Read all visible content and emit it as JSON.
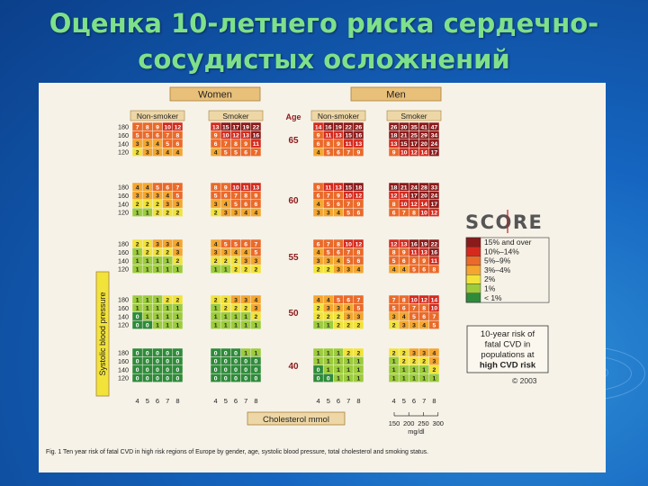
{
  "title_lines": [
    "Оценка 10-летнего риска сердечно-",
    "сосудистых осложнений"
  ],
  "colors": {
    "title": "#7ee08a",
    "risk_15_plus": "#8b1a1a",
    "risk_10_14": "#d42a1e",
    "risk_5_9": "#ea6a2a",
    "risk_3_4": "#f4a62f",
    "risk_2": "#f2e33a",
    "risk_1": "#9ccc3c",
    "risk_lt1": "#2e8b3a"
  },
  "chart_data": {
    "type": "heatmap",
    "gender_headers": [
      "Women",
      "Men"
    ],
    "smoking_headers": [
      "Non-smoker",
      "Smoker",
      "Non-smoker",
      "Smoker"
    ],
    "age_header": "Age",
    "ages": [
      "65",
      "60",
      "55",
      "50",
      "40"
    ],
    "sbp_rows": [
      "180",
      "160",
      "140",
      "120"
    ],
    "cholesterol_ticks": [
      "4",
      "5",
      "6",
      "7",
      "8"
    ],
    "x_axis_label": "Cholesterol mmol",
    "y_axis_label": "Systolic blood pressure",
    "mgdl_ticks": [
      "150",
      "200",
      "250",
      "300"
    ],
    "mgdl_unit": "mg/dl",
    "brand": "SCORE",
    "legend": [
      "15% and over",
      "10%–14%",
      "5%–9%",
      "3%–4%",
      "2%",
      "1%",
      "< 1%"
    ],
    "legend_caption": [
      "10-year risk of",
      "fatal CVD in",
      "populations at",
      "high CVD risk"
    ],
    "copyright": "© 2003",
    "caption": "Fig. 1   Ten year risk of fatal CVD in high risk regions of Europe by gender, age, systolic blood pressure, total cholesterol and smoking status.",
    "panels": [
      [
        [
          [
            7,
            8,
            9,
            10,
            12
          ],
          [
            5,
            5,
            6,
            7,
            8
          ],
          [
            3,
            3,
            4,
            5,
            6
          ],
          [
            2,
            3,
            3,
            4,
            4
          ]
        ],
        [
          [
            13,
            15,
            17,
            19,
            22
          ],
          [
            9,
            10,
            12,
            13,
            16
          ],
          [
            6,
            7,
            8,
            9,
            11
          ],
          [
            4,
            5,
            5,
            6,
            7
          ]
        ],
        [
          [
            14,
            16,
            19,
            22,
            26
          ],
          [
            9,
            11,
            13,
            15,
            16
          ],
          [
            6,
            8,
            9,
            11,
            13
          ],
          [
            4,
            5,
            6,
            7,
            9
          ]
        ],
        [
          [
            26,
            30,
            35,
            41,
            47
          ],
          [
            18,
            21,
            25,
            29,
            34
          ],
          [
            13,
            15,
            17,
            20,
            24
          ],
          [
            9,
            10,
            12,
            14,
            17
          ]
        ]
      ],
      [
        [
          [
            4,
            4,
            5,
            6,
            7
          ],
          [
            3,
            3,
            3,
            4,
            5
          ],
          [
            2,
            2,
            2,
            3,
            3
          ],
          [
            1,
            1,
            2,
            2,
            2
          ]
        ],
        [
          [
            8,
            9,
            10,
            11,
            13
          ],
          [
            5,
            6,
            7,
            8,
            9
          ],
          [
            3,
            4,
            5,
            6,
            6
          ],
          [
            2,
            3,
            3,
            4,
            4
          ]
        ],
        [
          [
            9,
            11,
            13,
            15,
            18
          ],
          [
            6,
            7,
            9,
            10,
            12
          ],
          [
            4,
            5,
            6,
            7,
            9
          ],
          [
            3,
            3,
            4,
            5,
            6
          ]
        ],
        [
          [
            18,
            21,
            24,
            28,
            33
          ],
          [
            12,
            14,
            17,
            20,
            24
          ],
          [
            8,
            10,
            12,
            14,
            17
          ],
          [
            6,
            7,
            8,
            10,
            12
          ]
        ]
      ],
      [
        [
          [
            2,
            2,
            3,
            3,
            4
          ],
          [
            1,
            2,
            2,
            2,
            3
          ],
          [
            1,
            1,
            1,
            1,
            2
          ],
          [
            1,
            1,
            1,
            1,
            1
          ]
        ],
        [
          [
            4,
            5,
            5,
            6,
            7
          ],
          [
            3,
            3,
            4,
            4,
            5
          ],
          [
            2,
            2,
            2,
            3,
            3
          ],
          [
            1,
            1,
            2,
            2,
            2
          ]
        ],
        [
          [
            6,
            7,
            8,
            10,
            12
          ],
          [
            4,
            5,
            6,
            7,
            8
          ],
          [
            3,
            3,
            4,
            5,
            6
          ],
          [
            2,
            2,
            3,
            3,
            4
          ]
        ],
        [
          [
            12,
            13,
            16,
            19,
            22
          ],
          [
            8,
            9,
            11,
            13,
            16
          ],
          [
            5,
            6,
            8,
            9,
            11
          ],
          [
            4,
            4,
            5,
            6,
            8
          ]
        ]
      ],
      [
        [
          [
            1,
            1,
            1,
            2,
            2
          ],
          [
            1,
            1,
            1,
            1,
            1
          ],
          [
            0,
            1,
            1,
            1,
            1
          ],
          [
            0,
            0,
            1,
            1,
            1
          ]
        ],
        [
          [
            2,
            2,
            3,
            3,
            4
          ],
          [
            1,
            2,
            2,
            2,
            3
          ],
          [
            1,
            1,
            1,
            1,
            2
          ],
          [
            1,
            1,
            1,
            1,
            1
          ]
        ],
        [
          [
            4,
            4,
            5,
            6,
            7
          ],
          [
            2,
            3,
            3,
            4,
            5
          ],
          [
            2,
            2,
            2,
            3,
            3
          ],
          [
            1,
            1,
            2,
            2,
            2
          ]
        ],
        [
          [
            7,
            8,
            10,
            12,
            14
          ],
          [
            5,
            6,
            7,
            8,
            10
          ],
          [
            3,
            4,
            5,
            6,
            7
          ],
          [
            2,
            3,
            3,
            4,
            5
          ]
        ]
      ],
      [
        [
          [
            0,
            0,
            0,
            0,
            0
          ],
          [
            0,
            0,
            0,
            0,
            0
          ],
          [
            0,
            0,
            0,
            0,
            0
          ],
          [
            0,
            0,
            0,
            0,
            0
          ]
        ],
        [
          [
            0,
            0,
            0,
            1,
            1
          ],
          [
            0,
            0,
            0,
            0,
            0
          ],
          [
            0,
            0,
            0,
            0,
            0
          ],
          [
            0,
            0,
            0,
            0,
            0
          ]
        ],
        [
          [
            1,
            1,
            1,
            2,
            2
          ],
          [
            1,
            1,
            1,
            1,
            1
          ],
          [
            0,
            1,
            1,
            1,
            1
          ],
          [
            0,
            0,
            1,
            1,
            1
          ]
        ],
        [
          [
            2,
            2,
            3,
            3,
            4
          ],
          [
            1,
            2,
            2,
            2,
            3
          ],
          [
            1,
            1,
            1,
            1,
            2
          ],
          [
            1,
            1,
            1,
            1,
            1
          ]
        ]
      ]
    ]
  }
}
